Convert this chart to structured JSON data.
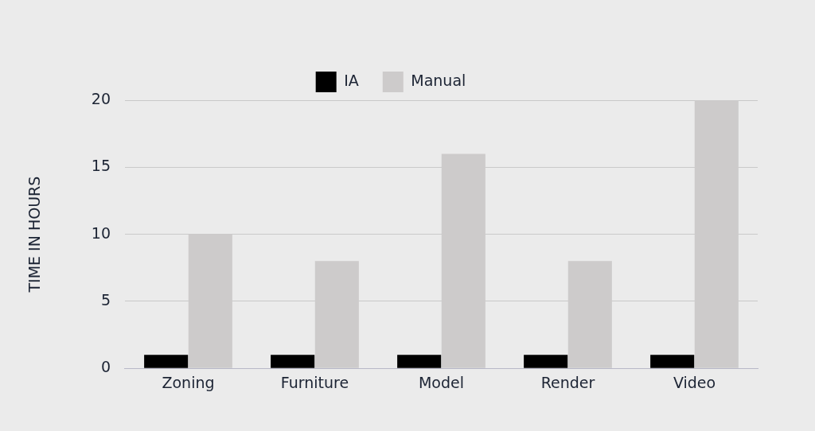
{
  "chart_data": {
    "type": "bar",
    "ylabel": "TIME IN HOURS",
    "categories": [
      "Zoning",
      "Furniture",
      "Model",
      "Render",
      "Video"
    ],
    "series": [
      {
        "name": "IA",
        "color": "#000000",
        "values": [
          1,
          1,
          1,
          1,
          1
        ]
      },
      {
        "name": "Manual",
        "color": "#cdcbcb",
        "values": [
          10,
          8,
          16,
          8,
          20
        ]
      }
    ],
    "ylim": [
      0,
      20
    ],
    "yticks": [
      0,
      5,
      10,
      15,
      20
    ],
    "grid": "y",
    "legend": "top"
  }
}
